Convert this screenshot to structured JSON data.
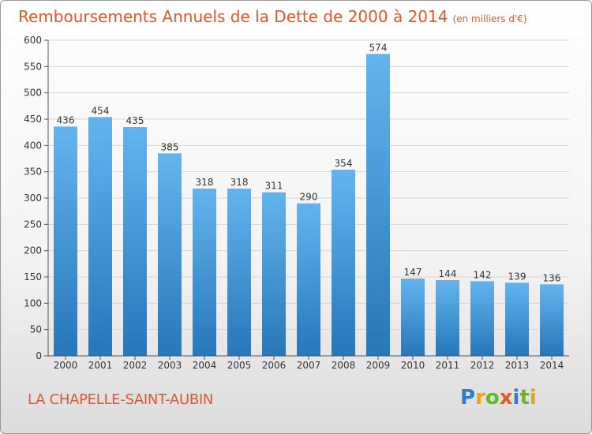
{
  "header": {
    "title": "Remboursements Annuels de la Dette de 2000 à 2014",
    "subtitle": "(en milliers d'€)"
  },
  "footer": {
    "city": "LA CHAPELLE-SAINT-AUBIN",
    "brand": "Proxiti"
  },
  "colors": {
    "accent": "#e0562a",
    "bar_top": "#63b4ee",
    "bar_bottom": "#2777b9"
  },
  "chart_data": {
    "type": "bar",
    "categories": [
      "2000",
      "2001",
      "2002",
      "2003",
      "2004",
      "2005",
      "2006",
      "2007",
      "2008",
      "2009",
      "2010",
      "2011",
      "2012",
      "2013",
      "2014"
    ],
    "values": [
      436,
      454,
      435,
      385,
      318,
      318,
      311,
      290,
      354,
      574,
      147,
      144,
      142,
      139,
      136
    ],
    "ylim": [
      0,
      600
    ],
    "yticks": [
      0,
      50,
      100,
      150,
      200,
      250,
      300,
      350,
      400,
      450,
      500,
      550,
      600
    ],
    "grid": true,
    "data_labels": true
  }
}
